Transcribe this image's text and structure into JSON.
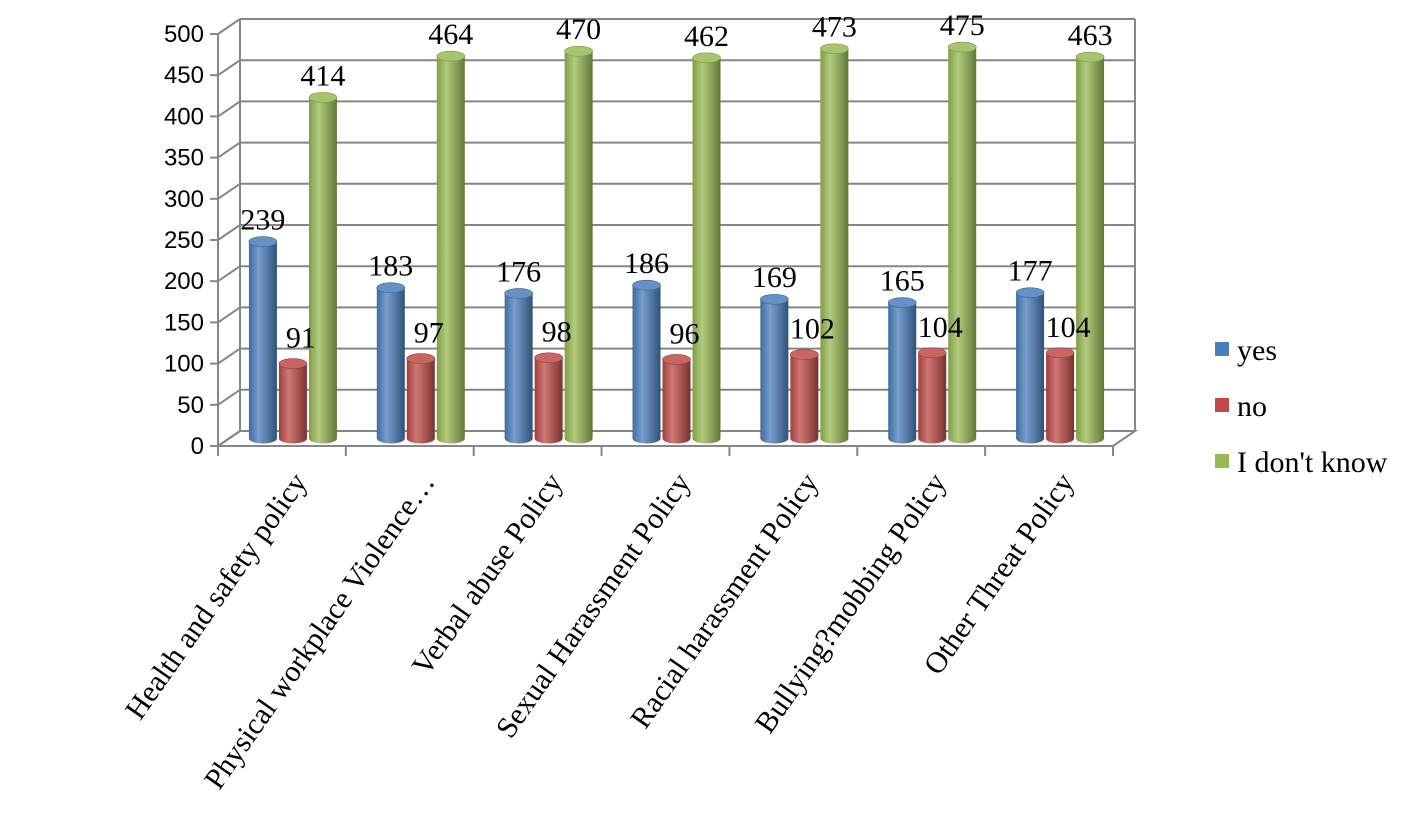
{
  "chart_data": {
    "type": "bar",
    "title": "",
    "xlabel": "",
    "ylabel": "",
    "ylim": [
      0,
      500
    ],
    "yticks": [
      0,
      50,
      100,
      150,
      200,
      250,
      300,
      350,
      400,
      450,
      500
    ],
    "grid": true,
    "legend_position": "right",
    "categories": [
      "Health and safety policy",
      "Physical workplace Violence…",
      "Verbal abuse Policy",
      "Sexual Harassment Policy",
      "Racial harassment Policy",
      "Bullying?mobbing Policy",
      "Other Threat Policy"
    ],
    "series": [
      {
        "name": "yes",
        "values": [
          239,
          183,
          176,
          186,
          169,
          165,
          177
        ]
      },
      {
        "name": "no",
        "values": [
          91,
          97,
          98,
          96,
          102,
          104,
          104
        ]
      },
      {
        "name": "I don't know",
        "values": [
          414,
          464,
          470,
          462,
          473,
          475,
          463
        ]
      }
    ],
    "colors": {
      "yes": "#4a7ebb",
      "no": "#be4b48",
      "I don't know": "#98b954"
    },
    "data_labels": true
  }
}
